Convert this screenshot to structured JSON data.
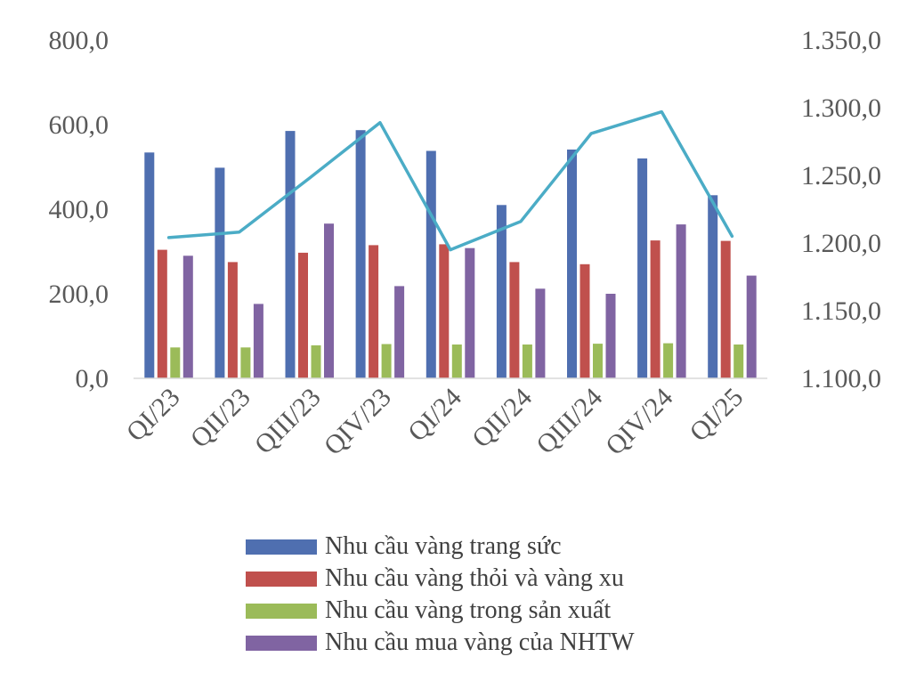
{
  "chart_data": {
    "type": "bar",
    "categories": [
      "QI/23",
      "QII/23",
      "QIII/23",
      "QIV/23",
      "QI/24",
      "QII/24",
      "QIII/24",
      "QIV/24",
      "QI/25"
    ],
    "series": [
      {
        "name": "Nhu cầu vàng trang sức",
        "color": "#4f6fb0",
        "axis": "left",
        "type": "bar",
        "values": [
          534,
          498,
          585,
          587,
          538,
          410,
          541,
          520,
          433
        ]
      },
      {
        "name": "Nhu cầu vàng thỏi và vàng xu",
        "color": "#c0504d",
        "axis": "left",
        "type": "bar",
        "values": [
          304,
          275,
          297,
          315,
          317,
          275,
          270,
          326,
          325
        ]
      },
      {
        "name": "Nhu cầu vàng trong sản xuất",
        "color": "#9bbb59",
        "axis": "left",
        "type": "bar",
        "values": [
          73,
          73,
          78,
          81,
          80,
          80,
          82,
          83,
          80
        ]
      },
      {
        "name": "Nhu cầu mua vàng của NHTW",
        "color": "#8064a2",
        "axis": "left",
        "type": "bar",
        "values": [
          290,
          176,
          366,
          218,
          308,
          212,
          200,
          364,
          243
        ]
      },
      {
        "name": "",
        "color": "#4bacc6",
        "axis": "right",
        "type": "line",
        "values": [
          1204,
          1208,
          1248,
          1289,
          1195,
          1216,
          1281,
          1297,
          1205
        ]
      }
    ],
    "y_left": {
      "ylim": [
        0,
        800
      ],
      "ticks": [
        0,
        200,
        400,
        600,
        800
      ],
      "tick_labels": [
        "0,0",
        "200,0",
        "400,0",
        "600,0",
        "800,0"
      ]
    },
    "y_right": {
      "ylim": [
        1100,
        1350
      ],
      "ticks": [
        1100,
        1150,
        1200,
        1250,
        1300,
        1350
      ],
      "tick_labels": [
        "1.100,0",
        "1.150,0",
        "1.200,0",
        "1.250,0",
        "1.300,0",
        "1.350,0"
      ]
    },
    "grid": false,
    "legend_position": "bottom",
    "title": "",
    "xlabel": "",
    "ylabel": ""
  },
  "legend": {
    "items": [
      {
        "label": "Nhu cầu vàng trang sức",
        "color": "#4f6fb0"
      },
      {
        "label": "Nhu cầu vàng thỏi và vàng xu",
        "color": "#c0504d"
      },
      {
        "label": "Nhu cầu vàng trong sản xuất",
        "color": "#9bbb59"
      },
      {
        "label": "Nhu cầu mua vàng của NHTW",
        "color": "#8064a2"
      }
    ]
  }
}
